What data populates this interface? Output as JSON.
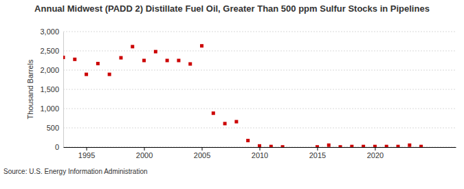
{
  "chart_data": {
    "type": "scatter",
    "title": "Annual Midwest (PADD 2) Distillate Fuel Oil, Greater Than 500 ppm Sulfur Stocks in Pipelines",
    "y_label": "Thousand Barrels",
    "source": "Source: U.S. Energy Information Administration",
    "x": [
      1993,
      1994,
      1995,
      1996,
      1997,
      1998,
      1999,
      2000,
      2001,
      2002,
      2003,
      2004,
      2005,
      2006,
      2007,
      2008,
      2009,
      2010,
      2011,
      2012,
      2015,
      2016,
      2017,
      2018,
      2019,
      2020,
      2021,
      2022,
      2023,
      2024
    ],
    "series": [
      {
        "name": "Stocks",
        "color": "#cc0000",
        "marker": "square",
        "values": [
          2330,
          2280,
          1890,
          2170,
          1890,
          2320,
          2610,
          2250,
          2480,
          2250,
          2250,
          2160,
          2630,
          880,
          610,
          660,
          170,
          30,
          15,
          5,
          5,
          50,
          5,
          15,
          15,
          15,
          15,
          15,
          50,
          15
        ]
      }
    ],
    "xlim": [
      1993,
      2027
    ],
    "xticks": [
      1995,
      2000,
      2005,
      2010,
      2015,
      2020
    ],
    "ylim": [
      0,
      3000
    ],
    "yticks": [
      0,
      500,
      {
        "value": 1000,
        "label": "1,000"
      },
      {
        "value": 1500,
        "label": "1,500"
      },
      {
        "value": 2000,
        "label": "2,000"
      },
      {
        "value": 2500,
        "label": "2,500"
      },
      {
        "value": 3000,
        "label": "3,000"
      }
    ],
    "grid": true
  }
}
